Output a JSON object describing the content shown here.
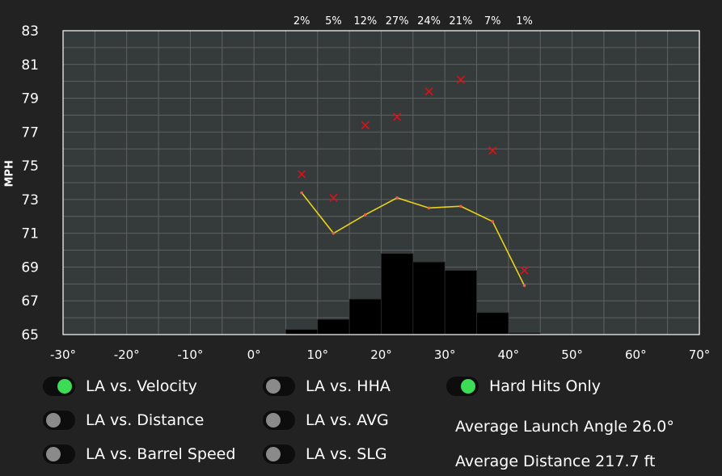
{
  "chart_data": {
    "type": "scatter",
    "ylabel": "MPH",
    "xlim": [
      -30,
      70
    ],
    "ylim": [
      65,
      83
    ],
    "x_ticks": [
      "-30°",
      "-20°",
      "-10°",
      "0°",
      "10°",
      "20°",
      "30°",
      "40°",
      "50°",
      "60°",
      "70°"
    ],
    "x_tick_values": [
      -30,
      -20,
      -10,
      0,
      10,
      20,
      30,
      40,
      50,
      60,
      70
    ],
    "y_ticks": [
      "65",
      "67",
      "69",
      "71",
      "73",
      "75",
      "77",
      "79",
      "81",
      "83"
    ],
    "y_tick_values": [
      65,
      67,
      69,
      71,
      73,
      75,
      77,
      79,
      81,
      83
    ],
    "grid": true,
    "histogram": {
      "bins": [
        [
          5,
          10
        ],
        [
          10,
          15
        ],
        [
          15,
          20
        ],
        [
          20,
          25
        ],
        [
          25,
          30
        ],
        [
          30,
          35
        ],
        [
          35,
          40
        ],
        [
          40,
          45
        ]
      ],
      "percent_labels": [
        "2%",
        "5%",
        "12%",
        "27%",
        "24%",
        "21%",
        "7%",
        "1%"
      ],
      "percent_values": [
        2,
        5,
        12,
        27,
        24,
        21,
        7,
        1
      ],
      "bar_tops_mph": [
        65.3,
        65.9,
        67.1,
        69.8,
        69.3,
        68.8,
        66.3,
        65.1
      ]
    },
    "series": [
      {
        "kind": "scatter",
        "x": [
          7.5,
          12.5,
          17.5,
          22.5,
          27.5,
          32.5,
          37.5,
          42.5
        ],
        "y": [
          74.5,
          73.1,
          77.4,
          77.9,
          79.4,
          80.1,
          75.9,
          68.8
        ]
      },
      {
        "kind": "line",
        "x": [
          7.5,
          12.5,
          17.5,
          22.5,
          27.5,
          32.5,
          37.5,
          42.5
        ],
        "y": [
          73.4,
          71.0,
          72.1,
          73.1,
          72.5,
          72.6,
          71.7,
          67.9
        ]
      }
    ],
    "colors": {
      "background": "#222222",
      "plot_area": "#353a3a",
      "grid": "#5e6262",
      "bars": "#000000",
      "scatter": "#e0101a",
      "line": "#e8d21a",
      "line_points": "#e8604a"
    }
  },
  "toggles": {
    "la_velocity": {
      "label": "LA vs. Velocity",
      "on": true
    },
    "la_distance": {
      "label": "LA vs. Distance",
      "on": false
    },
    "la_barrel_speed": {
      "label": "LA vs. Barrel Speed",
      "on": false
    },
    "la_hha": {
      "label": "LA vs. HHA",
      "on": false
    },
    "la_avg": {
      "label": "LA vs. AVG",
      "on": false
    },
    "la_slg": {
      "label": "LA vs. SLG",
      "on": false
    },
    "hard_hits_only": {
      "label": "Hard Hits Only",
      "on": true
    }
  },
  "stats": {
    "avg_launch_angle": "Average Launch Angle 26.0°",
    "avg_distance": "Average Distance 217.7 ft"
  }
}
